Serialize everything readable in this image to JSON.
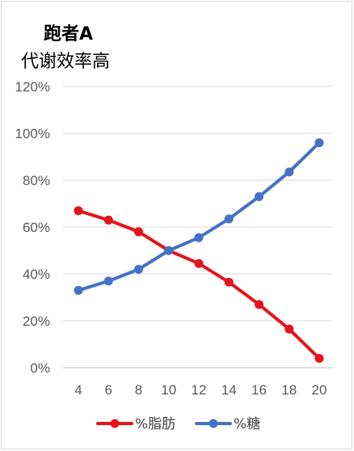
{
  "chart_data": {
    "type": "line",
    "title": "跑者A",
    "subtitle": "代谢效率高",
    "x": [
      4,
      6,
      8,
      10,
      12,
      14,
      16,
      18,
      20
    ],
    "x_tick_labels": [
      "4",
      "6",
      "8",
      "10",
      "12",
      "14",
      "16",
      "18",
      "20"
    ],
    "y_tick_labels": [
      "0%",
      "20%",
      "40%",
      "60%",
      "80%",
      "100%",
      "120%"
    ],
    "ylim": [
      0,
      120
    ],
    "y_unit": "%",
    "grid": true,
    "legend_position": "bottom",
    "series": [
      {
        "name": "%脂肪",
        "color": "#e3141b",
        "values": [
          67,
          63,
          58,
          50,
          44.5,
          36.5,
          27,
          16.5,
          4
        ]
      },
      {
        "name": "%糖",
        "color": "#4472c4",
        "values": [
          33,
          37,
          42,
          50,
          55.5,
          63.5,
          73,
          83.5,
          96
        ]
      }
    ]
  }
}
